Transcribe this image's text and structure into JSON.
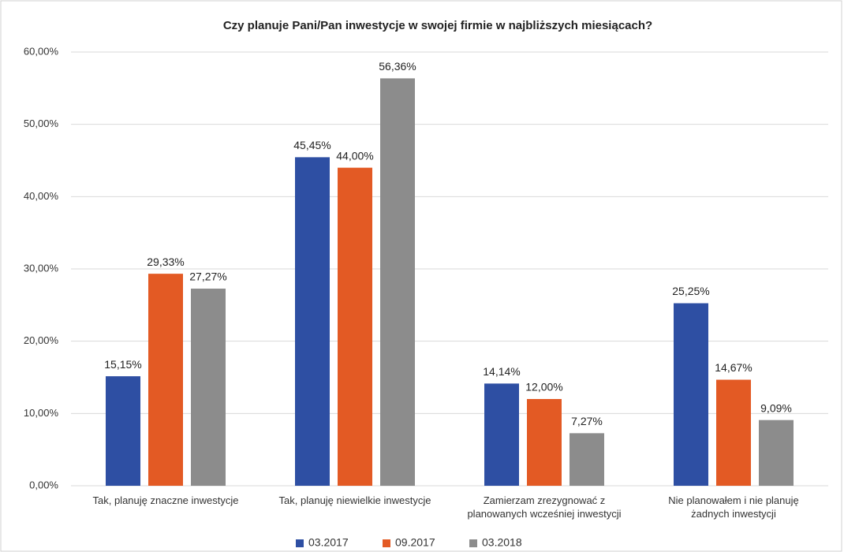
{
  "chart_data": {
    "type": "bar",
    "title": "Czy planuje Pani/Pan  inwestycje w swojej firmie w najbliższych miesiącach?",
    "categories": [
      "Tak, planuję znaczne inwestycje",
      "Tak, planuję niewielkie inwestycje",
      "Zamierzam zrezygnować z\nplanowanych wcześniej inwestycji",
      "Nie planowałem i nie planuję\nżadnych inwestycji"
    ],
    "series": [
      {
        "name": "03.2017",
        "color": "#2e4fa3",
        "values": [
          15.15,
          45.45,
          14.14,
          25.25
        ],
        "value_labels": [
          "15,15%",
          "45,45%",
          "14,14%",
          "25,25%"
        ]
      },
      {
        "name": "09.2017",
        "color": "#e35a24",
        "values": [
          29.33,
          44.0,
          12.0,
          14.67
        ],
        "value_labels": [
          "29,33%",
          "44,00%",
          "12,00%",
          "14,67%"
        ]
      },
      {
        "name": "03.2018",
        "color": "#8c8c8c",
        "values": [
          27.27,
          56.36,
          7.27,
          9.09
        ],
        "value_labels": [
          "27,27%",
          "56,36%",
          "7,27%",
          "9,09%"
        ]
      }
    ],
    "ylim": [
      0,
      60
    ],
    "yticks": [
      {
        "value": 0,
        "label": "0,00%"
      },
      {
        "value": 10,
        "label": "10,00%"
      },
      {
        "value": 20,
        "label": "20,00%"
      },
      {
        "value": 30,
        "label": "30,00%"
      },
      {
        "value": 40,
        "label": "40,00%"
      },
      {
        "value": 50,
        "label": "50,00%"
      },
      {
        "value": 60,
        "label": "60,00%"
      }
    ],
    "grid": true,
    "legend": "bottom"
  }
}
